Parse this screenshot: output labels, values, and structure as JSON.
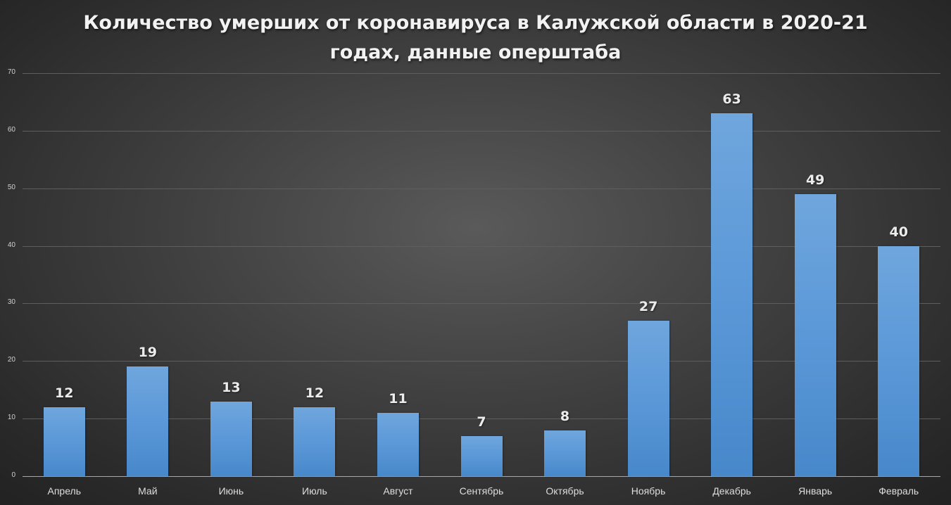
{
  "chart_data": {
    "type": "bar",
    "title": "Количество умерших от коронавируса в Калужской области в 2020-21 годах, данные оперштаба",
    "title_lines": [
      "Количество умерших от коронавируса в Калужской области в 2020-21",
      "годах, данные оперштаба"
    ],
    "categories": [
      "Апрель",
      "Май",
      "Июнь",
      "Июль",
      "Август",
      "Сентябрь",
      "Октябрь",
      "Ноябрь",
      "Декабрь",
      "Январь",
      "Февраль"
    ],
    "values": [
      12,
      19,
      13,
      12,
      11,
      7,
      8,
      27,
      63,
      49,
      40
    ],
    "xlabel": "",
    "ylabel": "",
    "ylim": [
      0,
      70
    ],
    "yticks": [
      0,
      10,
      20,
      30,
      40,
      50,
      60,
      70
    ],
    "grid": true,
    "legend": null,
    "data_labels": true,
    "bar_color": "#5b98d8",
    "background_color": "#3a3a3a"
  }
}
